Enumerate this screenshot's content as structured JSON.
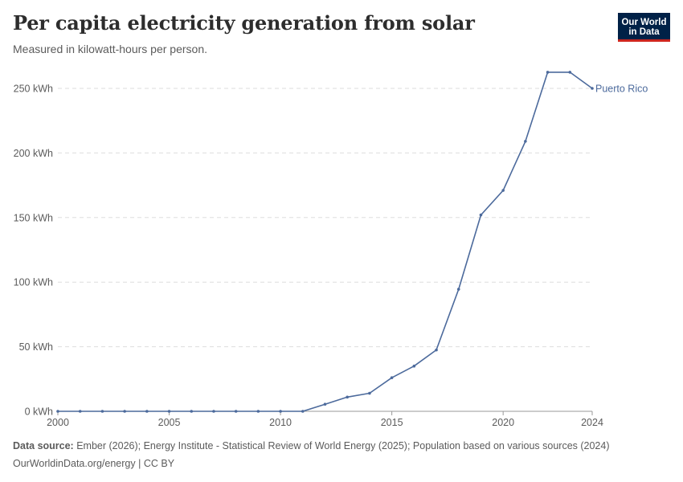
{
  "header": {
    "title": "Per capita electricity generation from solar",
    "subtitle": "Measured in kilowatt-hours per person."
  },
  "logo": {
    "line1": "Our World",
    "line2": "in Data",
    "background_color": "#002147",
    "accent_color": "#ce261e"
  },
  "chart_data": {
    "type": "line",
    "title": "Per capita electricity generation from solar",
    "subtitle": "Measured in kilowatt-hours per person.",
    "x_unit": "year",
    "y_unit": "kWh",
    "xlim": [
      2000,
      2024
    ],
    "ylim": [
      0,
      250
    ],
    "x_ticks": [
      2000,
      2005,
      2010,
      2015,
      2020,
      2024
    ],
    "x_tick_labels": [
      "2000",
      "2005",
      "2010",
      "2015",
      "2020",
      "2024"
    ],
    "y_ticks": [
      0,
      50,
      100,
      150,
      200,
      250
    ],
    "y_tick_labels": [
      "0 kWh",
      "50 kWh",
      "100 kWh",
      "150 kWh",
      "200 kWh",
      "250 kWh"
    ],
    "grid": "horizontal dashed",
    "legend": "end-of-line label",
    "series": [
      {
        "name": "Puerto Rico",
        "color": "#4c6a9c",
        "x": [
          2000,
          2001,
          2002,
          2003,
          2004,
          2005,
          2006,
          2007,
          2008,
          2009,
          2010,
          2011,
          2012,
          2013,
          2014,
          2015,
          2016,
          2017,
          2018,
          2019,
          2020,
          2021,
          2022,
          2023,
          2024
        ],
        "values": [
          0,
          0,
          0,
          0,
          0,
          0,
          0,
          0,
          0,
          0,
          0,
          0,
          5.5,
          11,
          14,
          26,
          35,
          47.5,
          94.5,
          152,
          171,
          209,
          262.5,
          262.5,
          250
        ]
      }
    ]
  },
  "footer": {
    "source_label": "Data source:",
    "source_text": " Ember (2026); Energy Institute - Statistical Review of World Energy (2025); Population based on various sources (2024)",
    "url_text": "OurWorldinData.org/energy",
    "separator": " | ",
    "license_text": "CC BY"
  }
}
